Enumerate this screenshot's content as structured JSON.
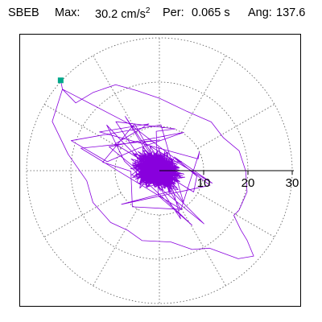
{
  "header": {
    "station": "SBEB",
    "max_label": "Max:",
    "max_value": "30.2 cm/s",
    "max_unit_exp": "2",
    "per_label": "Per:",
    "per_value": "0.065 s",
    "ang_label": "Ang:",
    "ang_value": "137.6"
  },
  "chart_data": {
    "type": "polar-trace",
    "station": "SBEB",
    "max_acceleration": 30.2,
    "period": 0.065,
    "angle": 137.6,
    "r_ticks": [
      10,
      20,
      30
    ],
    "r_tick_labels": [
      "10",
      "20",
      "30"
    ],
    "r_max": 30,
    "ring_values": [
      10,
      20,
      30
    ],
    "spoke_angles_deg": [
      0,
      30,
      60,
      90,
      120,
      150,
      180,
      210,
      240,
      270,
      300,
      330
    ],
    "grid": true,
    "trace_color": "#8800dd",
    "marker_color": "#00a88a",
    "peak_point": {
      "x": -22.3,
      "y": 20.4
    },
    "outline_points": [
      [
        -22.3,
        20.4
      ],
      [
        -21.9,
        18.4
      ],
      [
        -24.2,
        11.1
      ],
      [
        -20.6,
        3.7
      ],
      [
        -16.4,
        -2.3
      ],
      [
        -15.0,
        -7.2
      ],
      [
        -11.0,
        -11.7
      ],
      [
        -7.1,
        -13.5
      ],
      [
        -3.9,
        -15.8
      ],
      [
        2.6,
        -16.1
      ],
      [
        7.4,
        -17.8
      ],
      [
        11.3,
        -17.5
      ],
      [
        17.8,
        -19.9
      ],
      [
        21.3,
        -19.3
      ],
      [
        19.8,
        -15.7
      ],
      [
        18.4,
        -13.4
      ],
      [
        16.8,
        -10.1
      ],
      [
        18.0,
        -8.9
      ],
      [
        19.8,
        -4.8
      ],
      [
        19.5,
        -0.1
      ],
      [
        18.0,
        4.5
      ],
      [
        14.4,
        7.5
      ],
      [
        11.7,
        11.0
      ],
      [
        6.2,
        13.4
      ],
      [
        0.1,
        16.3
      ],
      [
        -5.2,
        18.1
      ],
      [
        -9.9,
        19.4
      ],
      [
        -14.9,
        17.7
      ],
      [
        -18.9,
        15.3
      ],
      [
        -21.9,
        18.4
      ]
    ]
  }
}
